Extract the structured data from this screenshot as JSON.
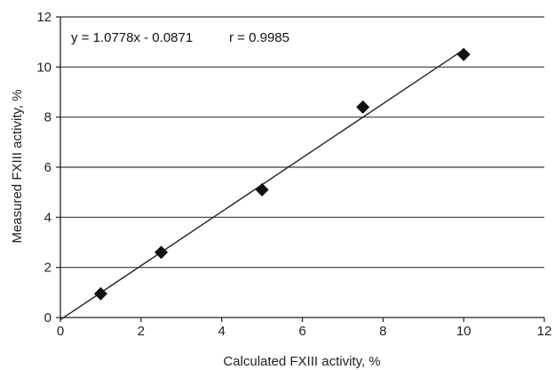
{
  "chart_data": {
    "type": "scatter",
    "title": "",
    "xlabel": "Calculated FXIII activity, %",
    "ylabel": "Measured FXIII activity, %",
    "xlim": [
      0,
      12
    ],
    "ylim": [
      0,
      12
    ],
    "x_ticks": [
      "0",
      "2",
      "4",
      "6",
      "8",
      "10",
      "12"
    ],
    "y_ticks": [
      "0",
      "2",
      "4",
      "6",
      "8",
      "10",
      "12"
    ],
    "grid": "horizontal",
    "legend": "none",
    "points": [
      {
        "x": 1,
        "y": 0.95
      },
      {
        "x": 2.5,
        "y": 2.6
      },
      {
        "x": 5,
        "y": 5.1
      },
      {
        "x": 7.5,
        "y": 8.4
      },
      {
        "x": 10,
        "y": 10.5
      }
    ],
    "trendline": {
      "slope": 1.0778,
      "intercept": -0.0871,
      "x_range": [
        0,
        10
      ]
    },
    "annotations": {
      "equation": "y = 1.0778x - 0.0871",
      "r_value": "r = 0.9985"
    },
    "colors": {
      "marker": "#111111",
      "trendline": "#222222",
      "gridline": "#3a3a3a",
      "axis": "#222222"
    }
  }
}
